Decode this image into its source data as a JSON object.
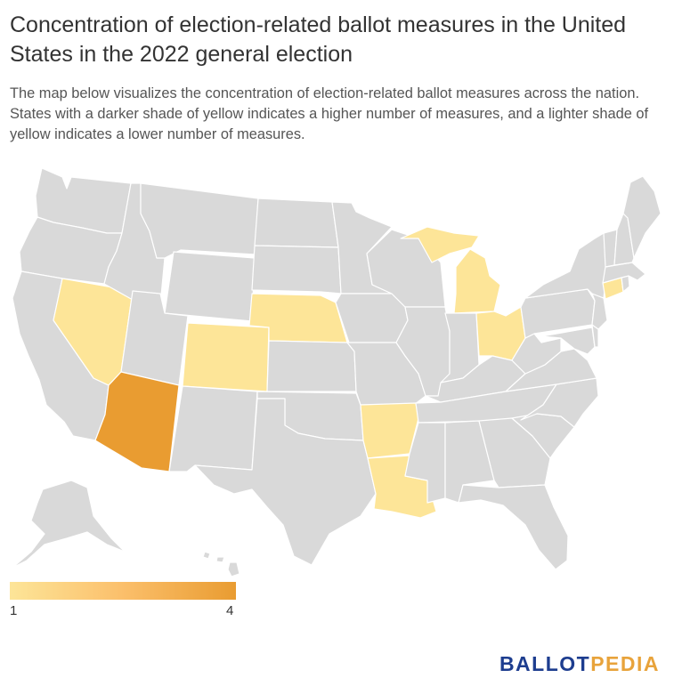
{
  "title": "Concentration of election-related ballot measures in the United States in the 2022 general election",
  "description": "The map below visualizes the concentration of election-related ballot measures across the nation. States with a darker shade of yellow indicates a higher number of measures, and a lighter shade of yellow indicates a lower number of measures.",
  "colors": {
    "no_data": "#d9d9d9",
    "scale_low": "#fde598",
    "scale_mid": "#fbbf6b",
    "scale_high": "#e99c31",
    "brand_blue": "#1d3d8f",
    "brand_gold": "#e8a33b"
  },
  "legend": {
    "min_label": "1",
    "max_label": "4"
  },
  "states_with_measures": [
    {
      "name": "Arizona",
      "count": 4
    },
    {
      "name": "Nevada",
      "count": 1
    },
    {
      "name": "Colorado",
      "count": 1
    },
    {
      "name": "Nebraska",
      "count": 1
    },
    {
      "name": "Arkansas",
      "count": 1
    },
    {
      "name": "Louisiana",
      "count": 1
    },
    {
      "name": "Michigan",
      "count": 1
    },
    {
      "name": "Ohio",
      "count": 1
    },
    {
      "name": "Connecticut",
      "count": 1
    }
  ],
  "brand": {
    "part1": "BALLOT",
    "part2": "PEDIA"
  }
}
